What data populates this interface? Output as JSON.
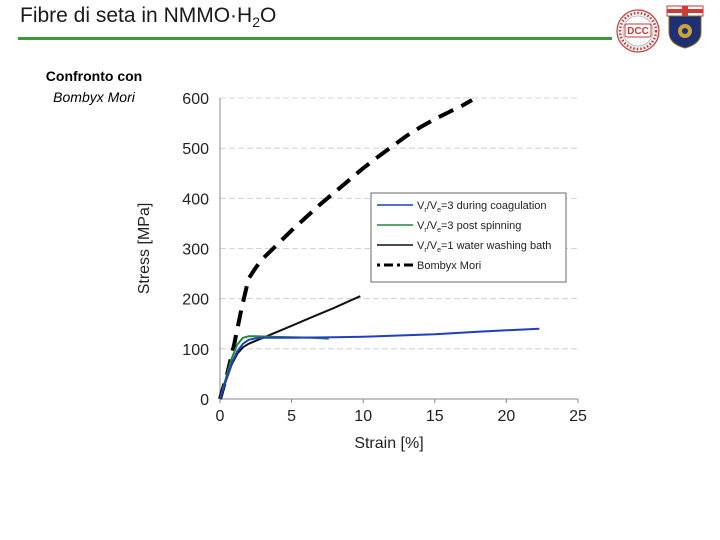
{
  "slide": {
    "title_main": "Fibre di seta in NMMO·H",
    "title_sub": "2",
    "title_end": "O",
    "subtitle_line1": "Confronto con",
    "subtitle_line2": "Bombyx Mori",
    "rule_color": "#3c9a38",
    "logo_left_text": "DCC",
    "logo_left_icon": "university-department-seal",
    "logo_right_icon": "university-crest"
  },
  "chart_data": {
    "type": "line",
    "title": "",
    "xlabel": "Strain [%]",
    "ylabel": "Stress [MPa]",
    "xlim": [
      0,
      25
    ],
    "ylim": [
      0,
      600
    ],
    "xticks": [
      "0",
      "5",
      "10",
      "15",
      "20",
      "25"
    ],
    "yticks": [
      "0",
      "100",
      "200",
      "300",
      "400",
      "500",
      "600"
    ],
    "grid": "horizontal",
    "legend_position": "right",
    "series": [
      {
        "name": "V_r/V_e=3 during coagulation",
        "color": "#1f3fbf",
        "style": "solid",
        "x": [
          0,
          0.4,
          0.8,
          1.2,
          1.6,
          2.0,
          2.5,
          3,
          5,
          8,
          10,
          12,
          15,
          18,
          20,
          22.3
        ],
        "y": [
          0,
          35,
          70,
          95,
          110,
          118,
          121,
          122,
          122,
          123,
          124,
          126,
          129,
          134,
          137,
          140
        ]
      },
      {
        "name": "V_r/V_e=3 post spinning",
        "color": "#1e8a3a",
        "style": "solid",
        "x": [
          0,
          0.4,
          0.8,
          1.2,
          1.6,
          2.0,
          2.5,
          3.5,
          5,
          6.5,
          7.6
        ],
        "y": [
          0,
          40,
          80,
          108,
          122,
          125,
          125,
          124,
          123,
          122,
          120
        ]
      },
      {
        "name": "V_r/V_e=1 water washing bath",
        "color": "#111111",
        "style": "solid",
        "x": [
          0,
          0.4,
          0.8,
          1.2,
          1.6,
          2.0,
          3,
          4,
          5,
          6,
          7,
          8,
          9,
          9.8
        ],
        "y": [
          0,
          35,
          68,
          90,
          103,
          110,
          122,
          134,
          146,
          158,
          170,
          182,
          195,
          205
        ]
      },
      {
        "name": "Bombyx Mori",
        "color": "#000000",
        "style": "dashed",
        "x": [
          0,
          0.5,
          1.0,
          1.5,
          2.0,
          2.5,
          3,
          4,
          5,
          6,
          7,
          8,
          9,
          10,
          11,
          12,
          13,
          14,
          15,
          16,
          17,
          17.6
        ],
        "y": [
          0,
          50,
          110,
          180,
          240,
          262,
          280,
          308,
          336,
          362,
          388,
          412,
          436,
          460,
          482,
          503,
          524,
          542,
          558,
          572,
          586,
          596
        ]
      }
    ],
    "legend": {
      "entries": [
        {
          "prefix": "V",
          "sub1": "r",
          "mid": "/V",
          "sub2": "e",
          "suffix": "=3 during coagulation"
        },
        {
          "prefix": "V",
          "sub1": "r",
          "mid": "/V",
          "sub2": "e",
          "suffix": "=3 post spinning"
        },
        {
          "prefix": "V",
          "sub1": "r",
          "mid": "/V",
          "sub2": "e",
          "suffix": "=1 water washing bath"
        },
        {
          "prefix": "",
          "sub1": "",
          "mid": "",
          "sub2": "",
          "suffix": "Bombyx Mori"
        }
      ]
    }
  }
}
